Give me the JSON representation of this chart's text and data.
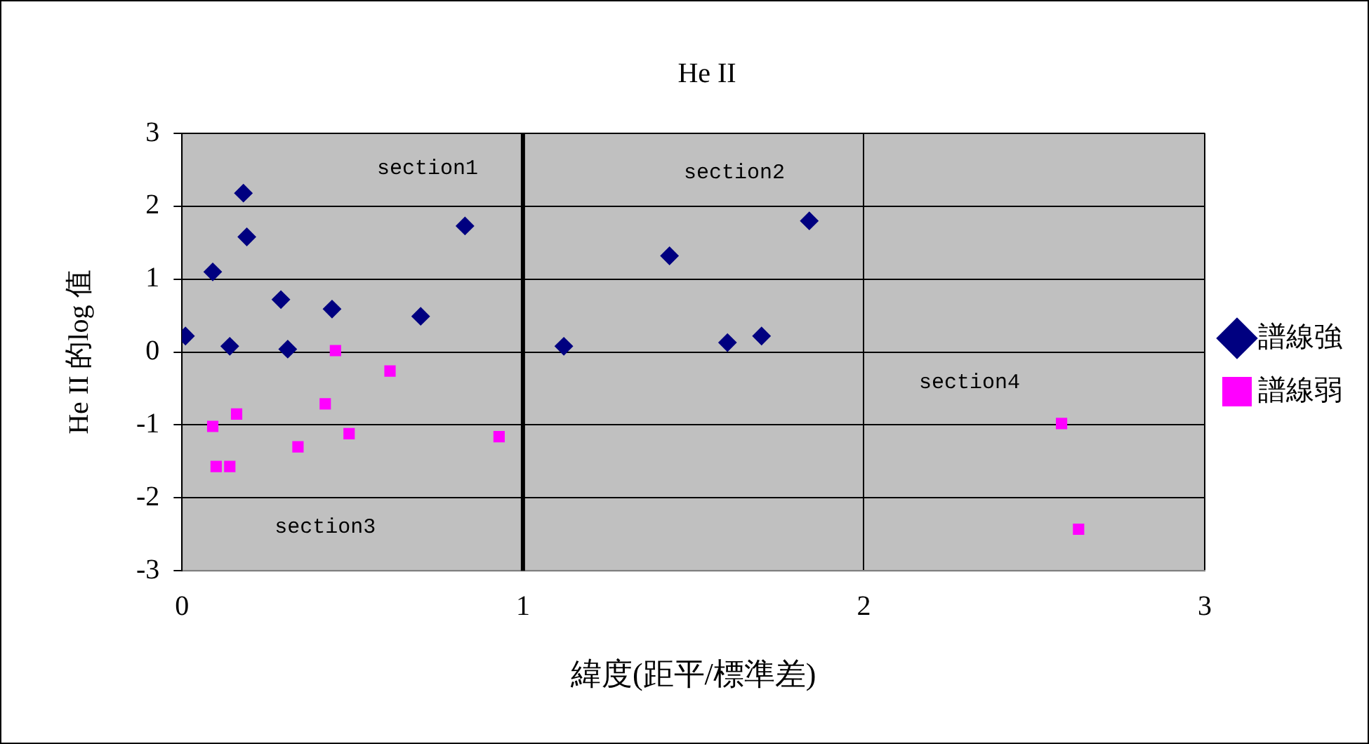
{
  "chart_data": {
    "type": "scatter",
    "title": "He II",
    "xlabel": "緯度(距平/標準差)",
    "ylabel": "He II 的log 值",
    "xlim": [
      0,
      3
    ],
    "xticks": [
      0,
      1,
      2,
      3
    ],
    "ylim": [
      -3,
      3
    ],
    "yticks": [
      -3,
      -2,
      -1,
      0,
      1,
      2,
      3
    ],
    "grid": true,
    "legend": "right",
    "ref_lines": [
      {
        "axis": "x",
        "value": 1,
        "color": "#000000"
      }
    ],
    "series": [
      {
        "name": "譜線強",
        "color": "#000080",
        "marker": "diamond",
        "x": [
          0.01,
          0.18,
          0.19,
          0.09,
          0.29,
          0.44,
          0.7,
          0.14,
          0.31,
          0.83,
          1.12,
          1.43,
          1.84,
          1.6,
          1.7
        ],
        "values": [
          0.22,
          2.18,
          1.58,
          1.1,
          0.72,
          0.59,
          0.49,
          0.08,
          0.04,
          1.73,
          0.08,
          1.32,
          1.8,
          0.13,
          0.22
        ]
      },
      {
        "name": "譜線弱",
        "color": "#ff00ff",
        "marker": "square",
        "x": [
          0.45,
          0.61,
          0.42,
          0.16,
          0.09,
          0.49,
          0.34,
          0.93,
          0.1,
          0.14,
          2.58,
          2.63
        ],
        "values": [
          0.02,
          -0.26,
          -0.71,
          -0.85,
          -1.02,
          -1.12,
          -1.3,
          -1.16,
          -1.57,
          -1.57,
          -0.98,
          -2.43
        ]
      }
    ],
    "annotations": [
      "section1",
      "section2",
      "section3",
      "section4"
    ]
  }
}
